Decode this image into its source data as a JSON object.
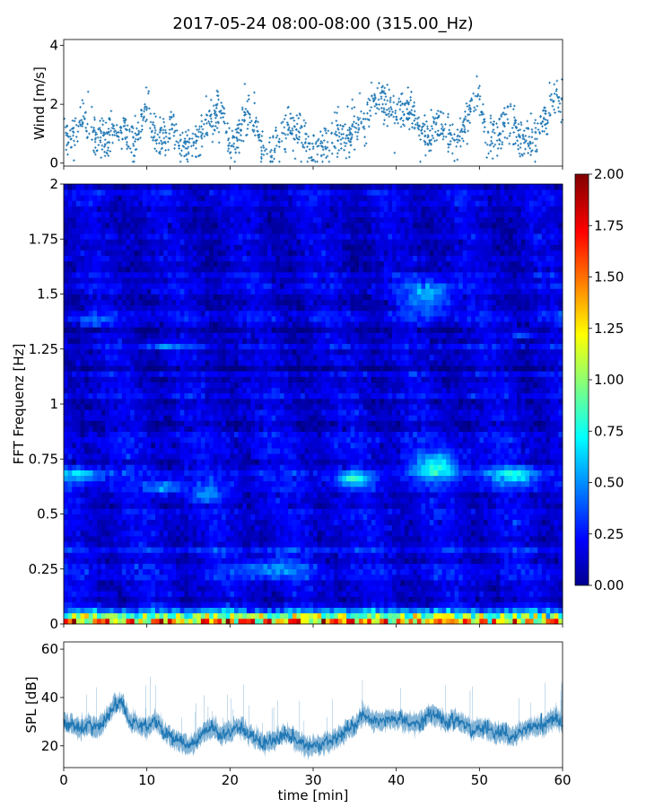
{
  "figure_title": "2017-05-24 08:00-08:00 (315.00_Hz)",
  "chart_data": [
    {
      "type": "scatter",
      "name": "wind",
      "ylabel": "Wind [m/s]",
      "xlim": [
        0,
        60
      ],
      "ylim": [
        -0.1,
        4.2
      ],
      "x_ticks": [
        0,
        10,
        20,
        30,
        40,
        50,
        60
      ],
      "y_ticks": [
        0,
        2,
        4
      ],
      "y_tick_labels": [
        "0",
        "2",
        "4"
      ],
      "color": "#1f77b4",
      "marker": "+",
      "trend_minutes": [
        0,
        1,
        2,
        3,
        4,
        5,
        6,
        7,
        8,
        9,
        10,
        11,
        12,
        13,
        14,
        15,
        16,
        17,
        18,
        19,
        20,
        21,
        22,
        23,
        24,
        25,
        26,
        27,
        28,
        29,
        30,
        31,
        32,
        33,
        34,
        35,
        36,
        37,
        38,
        39,
        40,
        41,
        42,
        43,
        44,
        45,
        46,
        47,
        48,
        49,
        50,
        51,
        52,
        53,
        54,
        55,
        56,
        57,
        58,
        59,
        60
      ],
      "trend_values": [
        0.9,
        0.9,
        1.6,
        1.2,
        0.8,
        0.7,
        1.0,
        1.2,
        0.8,
        1.0,
        2.1,
        1.0,
        0.9,
        1.2,
        0.7,
        0.6,
        0.8,
        1.1,
        1.7,
        1.8,
        0.7,
        1.0,
        1.8,
        1.4,
        0.4,
        0.3,
        0.9,
        1.2,
        1.0,
        0.8,
        0.4,
        0.5,
        0.9,
        0.9,
        0.9,
        1.2,
        1.3,
        2.0,
        2.3,
        1.9,
        1.8,
        1.8,
        1.7,
        1.1,
        0.8,
        1.4,
        1.0,
        0.8,
        1.0,
        1.9,
        2.2,
        0.7,
        0.8,
        1.3,
        1.6,
        0.7,
        0.8,
        1.0,
        1.6,
        2.3,
        2.1
      ],
      "spread": 0.35
    },
    {
      "type": "heatmap",
      "name": "spectrogram",
      "ylabel": "FFT Frequenz [Hz]",
      "xlim": [
        0,
        60
      ],
      "ylim": [
        0,
        2
      ],
      "y_ticks": [
        0,
        0.25,
        0.5,
        0.75,
        1,
        1.25,
        1.5,
        1.75,
        2
      ],
      "y_tick_labels": [
        "0",
        "0.25",
        "0.5",
        "0.75",
        "1",
        "1.25",
        "1.5",
        "1.75",
        "2"
      ],
      "colormap": "jet",
      "clim": [
        0,
        2
      ],
      "n_time_bins": 120,
      "n_freq_bins": 80,
      "base_level": 0.18,
      "hotspots": [
        {
          "t": 2,
          "f": 0.68,
          "width_min": 3,
          "width_hz": 0.03,
          "amp": 0.45
        },
        {
          "t": 12,
          "f": 0.62,
          "width_min": 2,
          "width_hz": 0.03,
          "amp": 0.35
        },
        {
          "t": 17,
          "f": 0.59,
          "width_min": 2,
          "width_hz": 0.03,
          "amp": 0.35
        },
        {
          "t": 12,
          "f": 1.27,
          "width_min": 2,
          "width_hz": 0.02,
          "amp": 0.3
        },
        {
          "t": 35,
          "f": 0.66,
          "width_min": 2,
          "width_hz": 0.03,
          "amp": 0.55
        },
        {
          "t": 45,
          "f": 0.72,
          "width_min": 3,
          "width_hz": 0.06,
          "amp": 0.55
        },
        {
          "t": 44,
          "f": 1.49,
          "width_min": 3,
          "width_hz": 0.08,
          "amp": 0.45
        },
        {
          "t": 54,
          "f": 0.68,
          "width_min": 3,
          "width_hz": 0.04,
          "amp": 0.5
        },
        {
          "t": 55,
          "f": 1.32,
          "width_min": 2,
          "width_hz": 0.02,
          "amp": 0.3
        },
        {
          "t": 3,
          "f": 1.38,
          "width_min": 2,
          "width_hz": 0.02,
          "amp": 0.25
        },
        {
          "t": 25,
          "f": 0.25,
          "width_min": 4,
          "width_hz": 0.05,
          "amp": 0.3
        }
      ],
      "low_freq_band_hz": 0.08,
      "low_freq_amp": 1.4
    },
    {
      "type": "line",
      "name": "spl",
      "xlabel": "time [min]",
      "ylabel": "SPL [dB]",
      "xlim": [
        0,
        60
      ],
      "ylim": [
        11,
        63
      ],
      "x_ticks": [
        0,
        10,
        20,
        30,
        40,
        50,
        60
      ],
      "x_tick_labels": [
        "0",
        "10",
        "20",
        "30",
        "40",
        "50",
        "60"
      ],
      "y_ticks": [
        20,
        40,
        60
      ],
      "y_tick_labels": [
        "20",
        "40",
        "60"
      ],
      "color": "#1f77b4",
      "trend_minutes": [
        0,
        1,
        2,
        3,
        4,
        5,
        6,
        7,
        8,
        9,
        10,
        11,
        12,
        13,
        14,
        15,
        16,
        17,
        18,
        19,
        20,
        21,
        22,
        23,
        24,
        25,
        26,
        27,
        28,
        29,
        30,
        31,
        32,
        33,
        34,
        35,
        36,
        37,
        38,
        39,
        40,
        41,
        42,
        43,
        44,
        45,
        46,
        47,
        48,
        49,
        50,
        51,
        52,
        53,
        54,
        55,
        56,
        57,
        58,
        59,
        60
      ],
      "trend_values": [
        30,
        29,
        27,
        29,
        27,
        31,
        37,
        38,
        30,
        29,
        27,
        31,
        26,
        23,
        22,
        20,
        22,
        26,
        28,
        25,
        26,
        28,
        26,
        23,
        21,
        22,
        24,
        25,
        22,
        20,
        20,
        21,
        22,
        23,
        26,
        28,
        33,
        31,
        30,
        31,
        31,
        30,
        29,
        30,
        33,
        32,
        30,
        31,
        29,
        27,
        27,
        27,
        25,
        26,
        23,
        27,
        27,
        28,
        29,
        32,
        29
      ],
      "noise_amplitude": 4
    }
  ],
  "colorbar": {
    "ticks": [
      0,
      0.25,
      0.5,
      0.75,
      1,
      1.25,
      1.5,
      1.75,
      2
    ],
    "tick_labels": [
      "0.00",
      "0.25",
      "0.50",
      "0.75",
      "1.00",
      "1.25",
      "1.50",
      "1.75",
      "2.00"
    ],
    "colormap": "jet"
  }
}
